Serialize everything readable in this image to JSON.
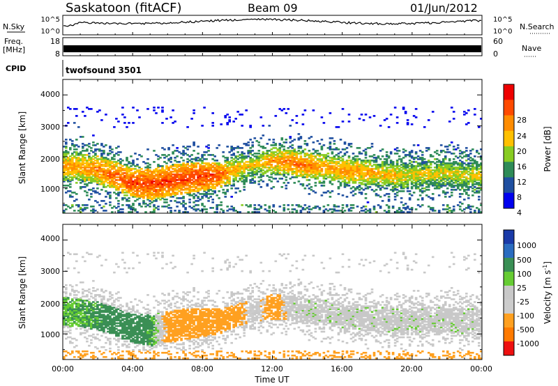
{
  "header": {
    "station": "Saskatoon (fitACF)",
    "beam": "Beam 09",
    "date": "01/Jun/2012"
  },
  "strips": {
    "nsky_label": "N.Sky",
    "nsky_ticks": [
      "10^5",
      "10^0"
    ],
    "nsearch_label": "N.Search",
    "nsearch_ticks": [
      "10^5",
      "10^0"
    ],
    "freq_label": "Freq.",
    "freq_unit": "[MHz]",
    "freq_ticks": [
      "18",
      "8"
    ],
    "nave_label": "Nave",
    "nave_ticks": [
      "60",
      "0"
    ],
    "cpid_label": "CPID",
    "cpid_value": "twofsound 3501"
  },
  "axes": {
    "xlabel": "Time UT",
    "x_ticks": [
      "00:00",
      "04:00",
      "08:00",
      "12:00",
      "16:00",
      "20:00",
      "00:00"
    ],
    "ylabel": "Slant Range [km]",
    "y_ticks": [
      "4000",
      "3000",
      "2000",
      "1000"
    ]
  },
  "colorbars": {
    "power": {
      "label": "Power [dB]",
      "ticks": [
        "28",
        "24",
        "20",
        "16",
        "12",
        "8",
        "4"
      ],
      "colors": [
        "#ee0000",
        "#ff4a00",
        "#ff8c00",
        "#ffc000",
        "#88cc22",
        "#2e8b57",
        "#1f4fa0",
        "#0000ee"
      ]
    },
    "velocity": {
      "label": "Velocity [m s",
      "label_sup": "-1",
      "label_end": "]",
      "ticks": [
        "1000",
        "500",
        "100",
        "25",
        "-25",
        "-100",
        "-500",
        "-1000"
      ],
      "colors": [
        "#1a3aa8",
        "#2a6cc0",
        "#3a8f55",
        "#66cc33",
        "#c8c8c8",
        "#cccccc",
        "#ffa020",
        "#ff7a00",
        "#ee1010"
      ]
    }
  },
  "chart_data": [
    {
      "type": "heatmap",
      "name": "Power",
      "x_range": [
        "00:00",
        "24:00"
      ],
      "ylim": [
        180,
        4500
      ],
      "x": [
        0,
        1,
        2,
        3,
        4,
        5,
        6,
        7,
        8,
        9,
        10,
        11,
        12,
        13,
        14,
        15,
        16,
        17,
        18,
        19,
        20,
        21,
        22,
        23,
        24
      ],
      "band_center_km": [
        1700,
        1650,
        1550,
        1350,
        1150,
        1100,
        1200,
        1300,
        1350,
        1400,
        1600,
        1750,
        1850,
        1800,
        1700,
        1650,
        1550,
        1500,
        1450,
        1400,
        1400,
        1450,
        1450,
        1400,
        1400
      ],
      "band_width_km": [
        900,
        900,
        900,
        900,
        900,
        1000,
        1000,
        1000,
        900,
        800,
        700,
        700,
        800,
        800,
        800,
        800,
        800,
        800,
        800,
        800,
        800,
        800,
        800,
        800,
        800
      ],
      "peak_power_db": [
        24,
        24,
        26,
        28,
        30,
        30,
        30,
        30,
        30,
        28,
        22,
        20,
        24,
        26,
        26,
        24,
        24,
        24,
        22,
        22,
        20,
        20,
        20,
        20,
        20
      ]
    },
    {
      "type": "heatmap",
      "name": "Velocity",
      "x_range": [
        "00:00",
        "24:00"
      ],
      "ylim": [
        180,
        4500
      ],
      "x": [
        0,
        1,
        2,
        3,
        4,
        5,
        6,
        7,
        8,
        9,
        10,
        11,
        12,
        13,
        14,
        15,
        16,
        17,
        18,
        19,
        20,
        21,
        22,
        23,
        24
      ],
      "dominant_velocity_ms": [
        50,
        60,
        80,
        120,
        100,
        80,
        -100,
        -150,
        -200,
        -150,
        -100,
        0,
        -150,
        0,
        0,
        0,
        0,
        0,
        0,
        0,
        0,
        0,
        0,
        0,
        0
      ]
    }
  ]
}
